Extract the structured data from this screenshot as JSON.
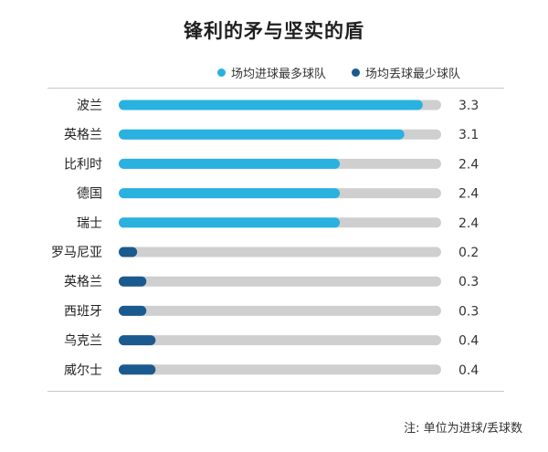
{
  "chart_data": {
    "type": "bar",
    "orientation": "horizontal",
    "title": "锋利的矛与坚实的盾",
    "categories": [
      "波兰",
      "英格兰",
      "比利时",
      "德国",
      "瑞士",
      "罗马尼亚",
      "英格兰",
      "西班牙",
      "乌克兰",
      "威尔士"
    ],
    "values": [
      3.3,
      3.1,
      2.4,
      2.4,
      2.4,
      0.2,
      0.3,
      0.3,
      0.4,
      0.4
    ],
    "value_labels": [
      "3.3",
      "3.1",
      "2.4",
      "2.4",
      "2.4",
      "0.2",
      "0.3",
      "0.3",
      "0.4",
      "0.4"
    ],
    "groups": [
      0,
      0,
      0,
      0,
      0,
      1,
      1,
      1,
      1,
      1
    ],
    "legend": [
      "场均进球最多球队",
      "场均丢球最少球队"
    ],
    "legend_placement": "top-right",
    "colors": [
      "#29b1e0",
      "#1b5a8e"
    ],
    "track_color": "#cfcfcf",
    "xlim": [
      0,
      3.5
    ],
    "grid": false,
    "note": "注: 单位为进球/丢球数"
  }
}
